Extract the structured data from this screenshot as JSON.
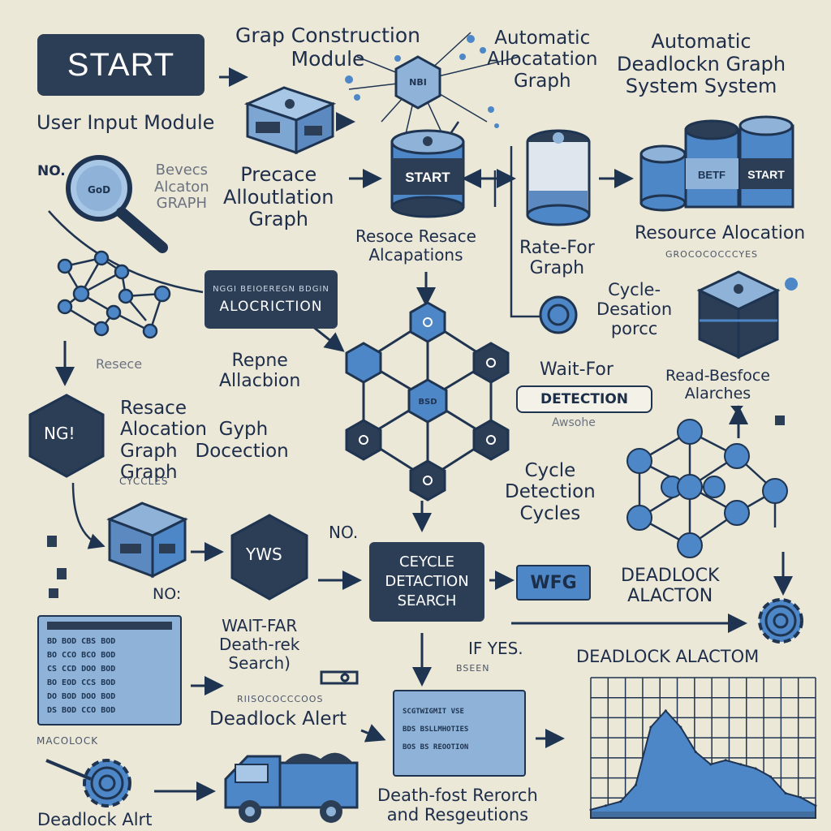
{
  "start_button": "START",
  "labels": {
    "graph_construction": "Grap Construction\nModule",
    "automatic_allocation": "Automatic\nAllocatation\nGraph",
    "automatic_deadlock": "Automatic\nDeadlockn Graph\nSystem System",
    "user_input": "User Input Module",
    "no_top_left": "NO.",
    "process_allocation": "Precace\nAlloutlation\nGraph",
    "process_alloc_faded": "Bevecs\nAlcaton\nGRAPH",
    "resource_alloc_mid": "Resoce Resace\nAlcapations",
    "rate_for": "Rate-For\nGraph",
    "resource_allocation_right": "Resource Alocation",
    "resource_alloc_right_sub": "GROCOCOCCCYES",
    "alloc_box_top": "NGGI BEIOEREGN BDGIN",
    "alloc_box_main": "ALOCRICTION",
    "cycle_desation": "Cycle-\nDesation\nporcc",
    "reppe_allocation": "Repne\nAllacbion",
    "resece_faded": "Resece",
    "wait_for": "Wait-For",
    "detection_pill": "DETECTION",
    "wait_sub": "Awsohe",
    "read_resource": "Read-Besfoce\nAlarches",
    "nod_hex": "NG!",
    "resace_allocation": "Resace\nAlocation  Gyph\nGraph   Docection\nGraph",
    "cycles_small": "CYCCLES",
    "cycle_detection_cycles": "Cycle\nDetection\nCycles",
    "yes_hex": "YWS",
    "no_mid": "NO.",
    "no_left": "NO:",
    "cycle_box": "CEYCLE\nDETACTION\nSEARCH",
    "wfg": "WFG",
    "deadlock_allocation_right": "DEADLOCK\nALACTON",
    "wait_far": "WAIT-FAR\nDeath-rek\nSearch)",
    "if_yes": "IF YES.",
    "if_yes_sub": "BSEEN",
    "deadlock_alert_mid_sub": "RIISOCOCCCOOS",
    "deadlock_alert_mid": "Deadlock Alert",
    "chart_title": "DEADLOCK  ALACTOM",
    "deadlock_small": "MACOLOCK",
    "deadlock_alert_bottom": "Deadlock Alrt",
    "death_fost": "Death-fost Rerorch\nand Resgeutions",
    "list_rows": [
      "BD  BOD  CBS  BOD",
      "BO  CCO  BCO  BOD",
      "CS  CCD  DOO  BOD",
      "BO  EOD  CCS  BOD",
      "DO  BOD  DOO  BOD",
      "DS  BOD  CCO  BOD"
    ],
    "report_rows": [
      "SCGTWIGMIT  VSE",
      "BDS BSLLMHOTIES",
      "BOS BS REOOTION"
    ]
  },
  "chart_data": {
    "type": "area",
    "title": "DEADLOCK  ALACTOM",
    "values": [
      2,
      3,
      4,
      8,
      22,
      26,
      22,
      16,
      13,
      14,
      13,
      12,
      10,
      6,
      5,
      3
    ],
    "ylim": [
      0,
      34
    ],
    "grid": true
  },
  "colors": {
    "background": "#ece8d8",
    "dark_navy": "#2c3e56",
    "light_blue": "#8eb2d8",
    "mid_blue": "#4d87c7",
    "stroke": "#1f3450"
  }
}
